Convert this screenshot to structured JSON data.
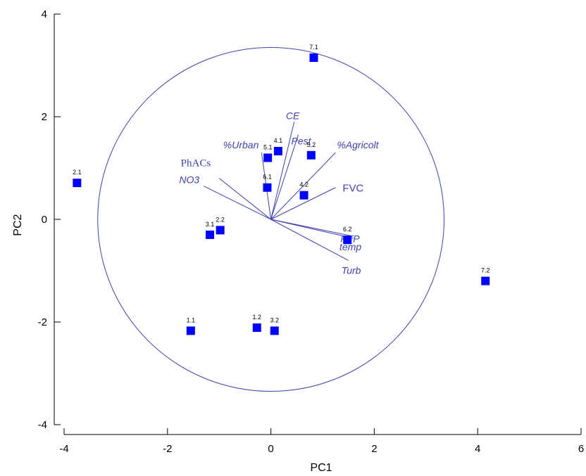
{
  "chart_data": {
    "type": "scatter",
    "title": "",
    "xlabel": "PC1",
    "ylabel": "PC2",
    "xlim": [
      -4,
      6
    ],
    "ylim": [
      -4,
      4
    ],
    "xticks": [
      "-4",
      "-2",
      "0",
      "2",
      "4",
      "6"
    ],
    "yticks": [
      "-4",
      "-2",
      "0",
      "2",
      "4"
    ],
    "grid": false,
    "circle_radius": 3.35,
    "points": [
      {
        "label": "7.1",
        "x": 0.83,
        "y": 3.15
      },
      {
        "label": "2.1",
        "x": -3.75,
        "y": 0.71
      },
      {
        "label": "5.1",
        "x": -0.06,
        "y": 1.2
      },
      {
        "label": "4.1",
        "x": 0.14,
        "y": 1.33
      },
      {
        "label": "5.2",
        "x": 0.78,
        "y": 1.25
      },
      {
        "label": "6.1",
        "x": -0.07,
        "y": 0.62
      },
      {
        "label": "4.2",
        "x": 0.64,
        "y": 0.47
      },
      {
        "label": "3.1",
        "x": -1.18,
        "y": -0.3
      },
      {
        "label": "2.2",
        "x": -0.98,
        "y": -0.21
      },
      {
        "label": "6.2",
        "x": 1.48,
        "y": -0.4
      },
      {
        "label": "7.2",
        "x": 4.15,
        "y": -1.2
      },
      {
        "label": "1.1",
        "x": -1.55,
        "y": -2.17
      },
      {
        "label": "1.2",
        "x": -0.27,
        "y": -2.11
      },
      {
        "label": "3.2",
        "x": 0.07,
        "y": -2.17
      }
    ],
    "vectors": [
      {
        "label": "%Urban",
        "x": -0.18,
        "y": 1.3,
        "style": "italic"
      },
      {
        "label": "CE",
        "x": 0.45,
        "y": 1.9,
        "style": "italic"
      },
      {
        "label": "Pest",
        "x": 0.53,
        "y": 1.65,
        "style": "italic"
      },
      {
        "label": "%Agricolt",
        "x": 1.25,
        "y": 1.3,
        "style": "italic"
      },
      {
        "label": "PhACs",
        "x": -1.0,
        "y": 0.8,
        "style": "serif"
      },
      {
        "label": "NO3",
        "x": -1.3,
        "y": 0.65,
        "style": "italic"
      },
      {
        "label": "FVC",
        "x": 1.25,
        "y": 0.62,
        "style": "sans"
      },
      {
        "label": "PTP",
        "x": 1.55,
        "y": -0.32,
        "style": "italic"
      },
      {
        "label": "temp",
        "x": 1.6,
        "y": -0.37,
        "style": "italic"
      },
      {
        "label": "Turb",
        "x": 1.5,
        "y": -0.8,
        "style": "italic"
      }
    ],
    "colors": {
      "points": "#0000ff",
      "vectors": "#3f3fae",
      "axes": "#000000"
    }
  }
}
